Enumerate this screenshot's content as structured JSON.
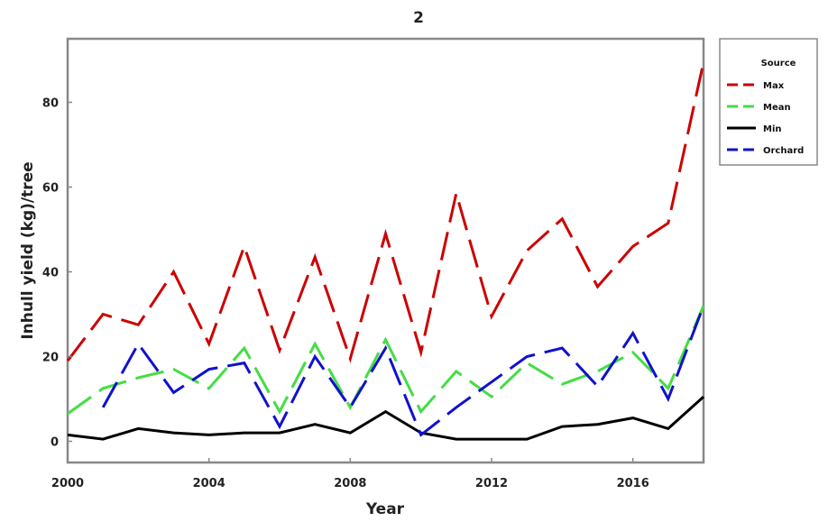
{
  "chart_data": {
    "type": "line",
    "title": "2",
    "xlabel": "Year",
    "ylabel": "Inhull yield (kg)/tree",
    "xlim": [
      2000,
      2018
    ],
    "ylim": [
      -5,
      95
    ],
    "x_ticks": [
      2000,
      2004,
      2008,
      2012,
      2016
    ],
    "y_ticks": [
      0,
      20,
      40,
      60,
      80
    ],
    "legend": {
      "title": "Source",
      "position": "right"
    },
    "x": [
      2000,
      2001,
      2002,
      2003,
      2004,
      2005,
      2006,
      2007,
      2008,
      2009,
      2010,
      2011,
      2012,
      2013,
      2014,
      2015,
      2016,
      2017,
      2018
    ],
    "series": [
      {
        "name": "Max",
        "color": "#cc0000",
        "dash": "dashed",
        "values": [
          19,
          30,
          27.5,
          40,
          23,
          46,
          21.5,
          43.5,
          19.5,
          49,
          21,
          58.5,
          29.5,
          45,
          52.5,
          36.5,
          46,
          51.5,
          89.5
        ]
      },
      {
        "name": "Mean",
        "color": "#44dd44",
        "dash": "dashed",
        "values": [
          6.5,
          12.5,
          15,
          17,
          12.5,
          22,
          7,
          23,
          8,
          24,
          7,
          16.5,
          10.5,
          18.5,
          13.5,
          16.5,
          21,
          12.5,
          32
        ]
      },
      {
        "name": "Min",
        "color": "#000000",
        "dash": "solid",
        "values": [
          1.5,
          0.5,
          3,
          2,
          1.5,
          2,
          2,
          4,
          2,
          7,
          2,
          0.5,
          0.5,
          0.5,
          3.5,
          4,
          5.5,
          3,
          10.5
        ]
      },
      {
        "name": "Orchard",
        "color": "#1111cc",
        "dash": "dashed",
        "values": [
          null,
          8,
          23,
          11.5,
          17,
          18.5,
          3.5,
          20,
          8,
          22,
          1.5,
          8,
          14,
          20,
          22,
          13,
          25.5,
          10,
          32
        ]
      }
    ]
  }
}
